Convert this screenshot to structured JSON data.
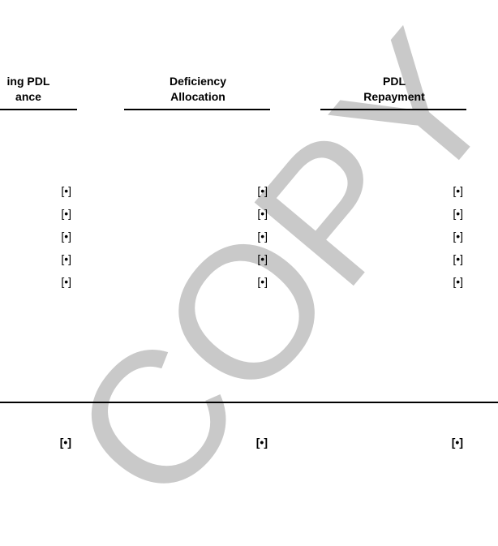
{
  "table": {
    "headers": [
      [
        "ing PDL",
        "ance"
      ],
      [
        "Deficiency",
        "Allocation"
      ],
      [
        "PDL",
        "Repayment"
      ]
    ],
    "rows": [
      [
        "[•]",
        "[•]",
        "[•]"
      ],
      [
        "[•]",
        "[•]",
        "[•]"
      ],
      [
        "[•]",
        "[•]",
        "[•]"
      ],
      [
        "[•]",
        "[•]",
        "[•]"
      ],
      [
        "[•]",
        "[•]",
        "[•]"
      ]
    ],
    "totals": [
      "[•]",
      "[•]",
      "[•]"
    ]
  },
  "watermark": "COPY"
}
